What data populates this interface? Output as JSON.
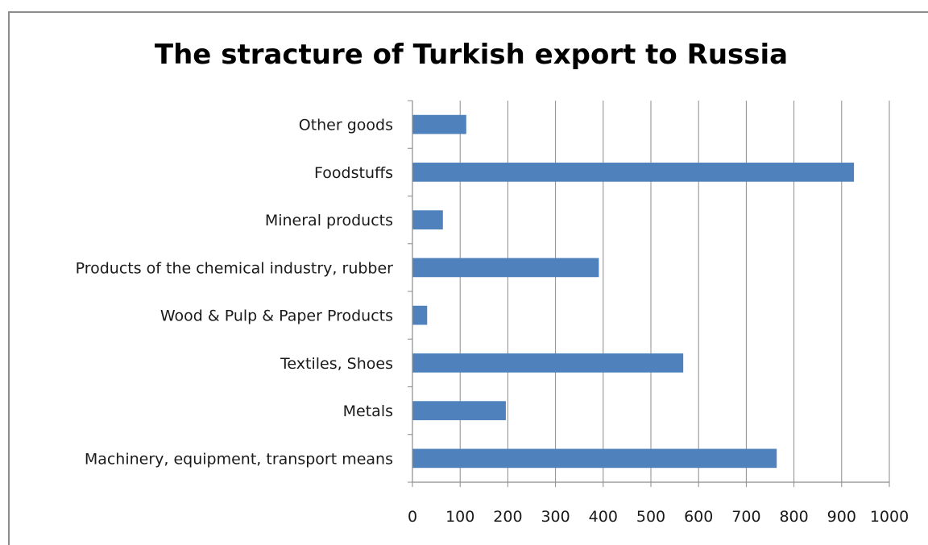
{
  "chart_data": {
    "type": "bar",
    "orientation": "horizontal",
    "title": "The stracture of Turkish export to Russia",
    "xlabel": "",
    "ylabel": "",
    "categories": [
      "Other goods",
      "Foodstuffs",
      "Mineral products",
      "Products of the chemical industry, rubber",
      "Wood & Pulp & Paper Products",
      "Textiles, Shoes",
      "Metals",
      "Machinery, equipment, transport means"
    ],
    "values": [
      112,
      925,
      63,
      390,
      30,
      567,
      195,
      763
    ],
    "xlim": [
      0,
      1000
    ],
    "xticks": [
      "0",
      "100",
      "200",
      "300",
      "400",
      "500",
      "600",
      "700",
      "800",
      "900",
      "1000"
    ],
    "grid": "vertical",
    "legend": "none",
    "bar_color": "#4f81bd",
    "grid_color": "#8c8c8c"
  }
}
